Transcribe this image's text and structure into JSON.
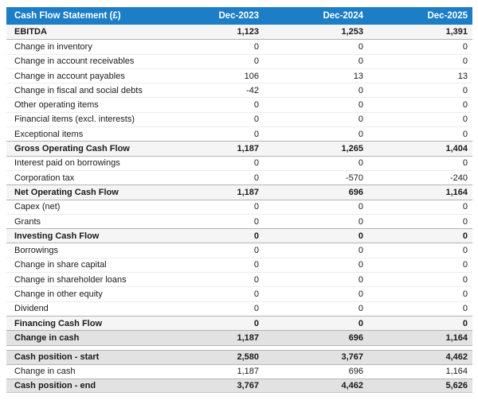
{
  "chart_data": {
    "type": "table",
    "title": "Cash Flow Statement (£)",
    "columns": [
      "Dec-2023",
      "Dec-2024",
      "Dec-2025"
    ],
    "rows": [
      {
        "label": "EBITDA",
        "values": [
          "1,123",
          "1,253",
          "1,391"
        ],
        "style": "subtotal"
      },
      {
        "label": "Change in inventory",
        "values": [
          "0",
          "0",
          "0"
        ],
        "style": "regular"
      },
      {
        "label": "Change in account receivables",
        "values": [
          "0",
          "0",
          "0"
        ],
        "style": "regular"
      },
      {
        "label": "Change in account payables",
        "values": [
          "106",
          "13",
          "13"
        ],
        "style": "regular"
      },
      {
        "label": "Change in fiscal and social debts",
        "values": [
          "-42",
          "0",
          "0"
        ],
        "style": "regular"
      },
      {
        "label": "Other operating items",
        "values": [
          "0",
          "0",
          "0"
        ],
        "style": "regular"
      },
      {
        "label": "Financial items (excl. interests)",
        "values": [
          "0",
          "0",
          "0"
        ],
        "style": "regular"
      },
      {
        "label": "Exceptional items",
        "values": [
          "0",
          "0",
          "0"
        ],
        "style": "regular"
      },
      {
        "label": "Gross Operating Cash Flow",
        "values": [
          "1,187",
          "1,265",
          "1,404"
        ],
        "style": "subtotal"
      },
      {
        "label": "Interest paid on borrowings",
        "values": [
          "0",
          "0",
          "0"
        ],
        "style": "regular"
      },
      {
        "label": "Corporation tax",
        "values": [
          "0",
          "-570",
          "-240"
        ],
        "style": "regular"
      },
      {
        "label": "Net Operating Cash Flow",
        "values": [
          "1,187",
          "696",
          "1,164"
        ],
        "style": "subtotal"
      },
      {
        "label": "Capex (net)",
        "values": [
          "0",
          "0",
          "0"
        ],
        "style": "regular"
      },
      {
        "label": "Grants",
        "values": [
          "0",
          "0",
          "0"
        ],
        "style": "regular"
      },
      {
        "label": "Investing Cash Flow",
        "values": [
          "0",
          "0",
          "0"
        ],
        "style": "subtotal"
      },
      {
        "label": "Borrowings",
        "values": [
          "0",
          "0",
          "0"
        ],
        "style": "regular"
      },
      {
        "label": "Change in share capital",
        "values": [
          "0",
          "0",
          "0"
        ],
        "style": "regular"
      },
      {
        "label": "Change in shareholder loans",
        "values": [
          "0",
          "0",
          "0"
        ],
        "style": "regular"
      },
      {
        "label": "Change in other equity",
        "values": [
          "0",
          "0",
          "0"
        ],
        "style": "regular"
      },
      {
        "label": "Dividend",
        "values": [
          "0",
          "0",
          "0"
        ],
        "style": "regular"
      },
      {
        "label": "Financing Cash Flow",
        "values": [
          "0",
          "0",
          "0"
        ],
        "style": "subtotal"
      },
      {
        "label": "Change in cash",
        "values": [
          "1,187",
          "696",
          "1,164"
        ],
        "style": "total"
      },
      {
        "label": "Cash position - start",
        "values": [
          "2,580",
          "3,767",
          "4,462"
        ],
        "style": "total",
        "gap_before": true
      },
      {
        "label": "Change in cash",
        "values": [
          "1,187",
          "696",
          "1,164"
        ],
        "style": "regular"
      },
      {
        "label": "Cash position - end",
        "values": [
          "3,767",
          "4,462",
          "5,626"
        ],
        "style": "total"
      }
    ]
  },
  "colors": {
    "header_bg": "#1b7ec7",
    "header_text": "#ffffff",
    "subtotal_bg": "#f5f5f5",
    "total_bg": "#e2e2e2"
  }
}
